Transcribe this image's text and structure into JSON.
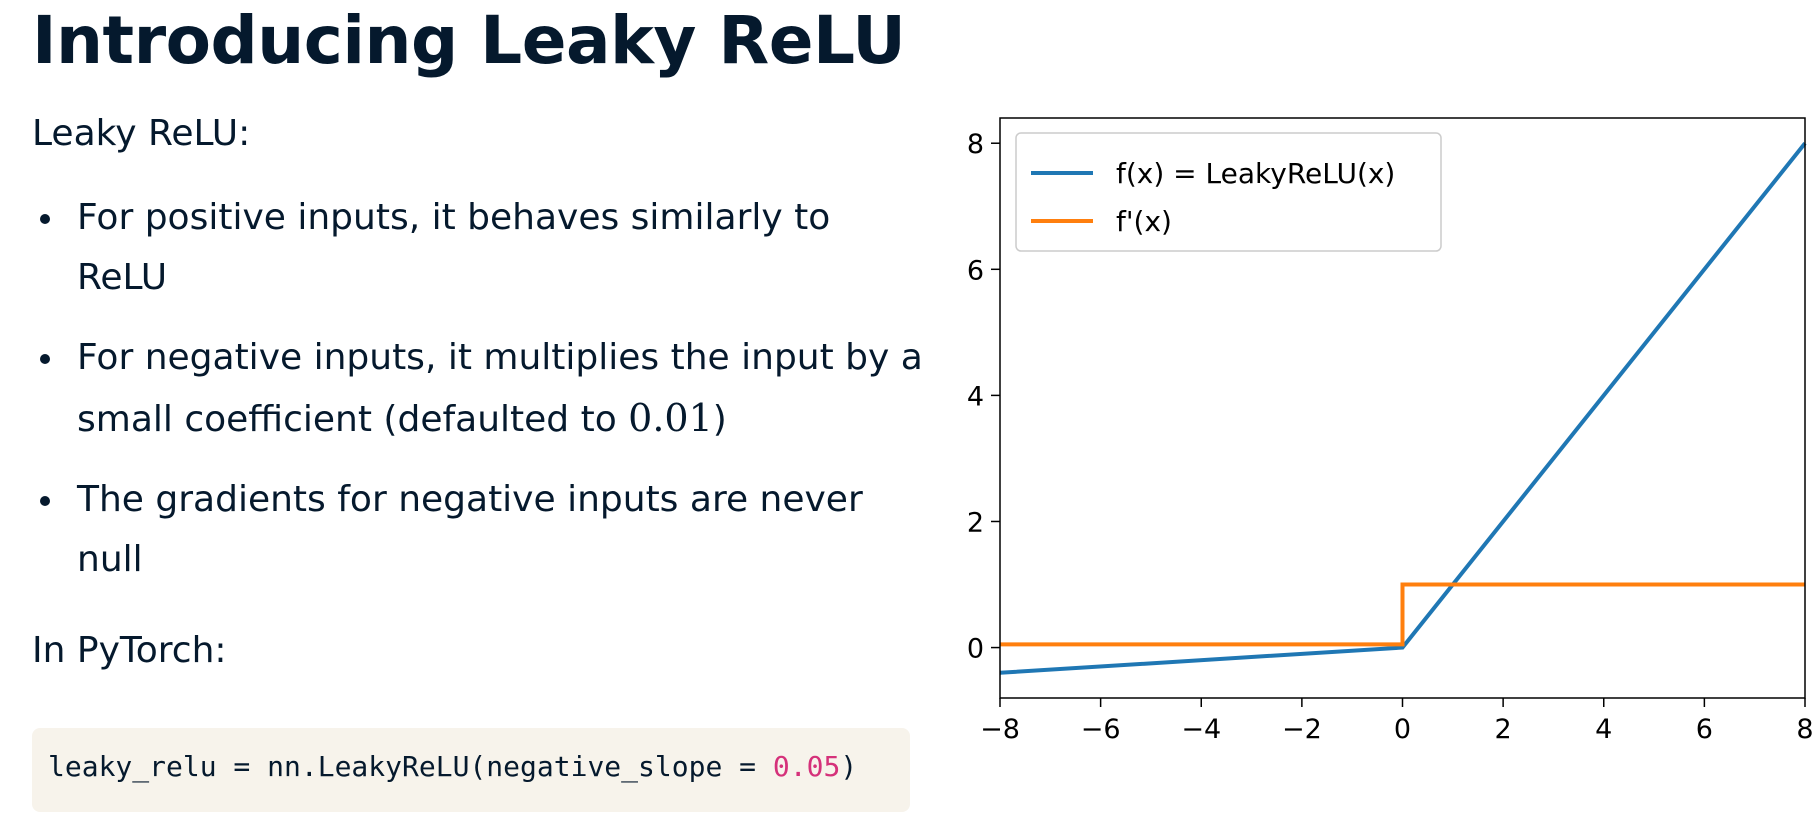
{
  "slide": {
    "title": "Introducing Leaky ReLU",
    "intro": "Leaky ReLU:",
    "bullets": [
      {
        "text": "For positive inputs, it behaves similarly to ReLU"
      },
      {
        "text_before": "For negative inputs, it multiplies the input by a small coefficient (defaulted to ",
        "math": "0.01",
        "text_after": ")"
      },
      {
        "text": "The gradients for negative inputs are never null"
      }
    ],
    "pytorch_label": "In PyTorch:",
    "code": {
      "prefix": "leaky_relu = nn.LeakyReLU(negative_slope = ",
      "number": "0.05",
      "suffix": ")"
    }
  },
  "colors": {
    "text": "#05192d",
    "code_bg": "#f7f3eb",
    "code_number": "#d5317a",
    "series_f": "#1f77b4",
    "series_df": "#ff7f0e"
  },
  "chart_data": {
    "type": "line",
    "xlim": [
      -8,
      8
    ],
    "ylim": [
      -0.8,
      8.4
    ],
    "xticks": [
      -8,
      -6,
      -4,
      -2,
      0,
      2,
      4,
      6,
      8
    ],
    "xtick_labels": [
      "−8",
      "−6",
      "−4",
      "−2",
      "0",
      "2",
      "4",
      "6",
      "8"
    ],
    "yticks": [
      0,
      2,
      4,
      6,
      8
    ],
    "ytick_labels": [
      "0",
      "2",
      "4",
      "6",
      "8"
    ],
    "grid": false,
    "legend": "upper-left",
    "series": [
      {
        "name": "f(x) = LeakyReLU(x)",
        "color": "#1f77b4",
        "x": [
          -8,
          0,
          8
        ],
        "y": [
          -0.4,
          0,
          8
        ]
      },
      {
        "name": "f'(x)",
        "color": "#ff7f0e",
        "x": [
          -8,
          0,
          0,
          8
        ],
        "y": [
          0.05,
          0.05,
          1,
          1
        ]
      }
    ]
  }
}
